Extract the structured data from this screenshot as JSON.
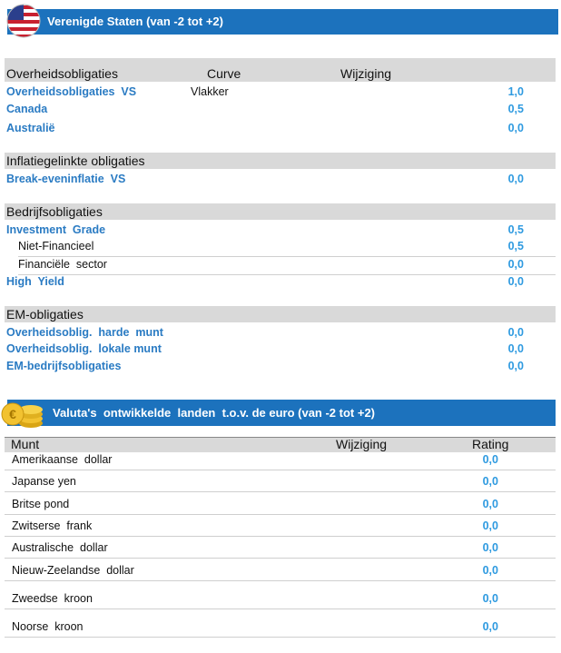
{
  "us_section": {
    "title": "Verenigde Staten (van -2 tot +2)",
    "groups": [
      {
        "header": "Overheidsobligaties",
        "columns": [
          "Curve",
          "Wijziging"
        ],
        "rows": [
          {
            "label": "Overheidsobligaties  VS",
            "curve": "Vlakker",
            "value": "1,0"
          },
          {
            "label": "Canada",
            "value": "0,5"
          },
          {
            "label": "Australië",
            "value": "0,0"
          }
        ]
      },
      {
        "header": "Inflatiegelinkte obligaties",
        "rows": [
          {
            "label": "Break-eveninflatie  VS",
            "value": "0,0"
          }
        ]
      },
      {
        "header": "Bedrijfsobligaties",
        "rows": [
          {
            "label": "Investment  Grade",
            "value": "0,5"
          },
          {
            "label": "Niet-Financieel",
            "value": "0,5",
            "sub": true
          },
          {
            "label": "Financiële  sector",
            "value": "0,0",
            "sub": true
          },
          {
            "label": "High  Yield",
            "value": "0,0"
          }
        ]
      },
      {
        "header": "EM-obligaties",
        "rows": [
          {
            "label": "Overheidsoblig.  harde  munt",
            "value": "0,0"
          },
          {
            "label": "Overheidsoblig.  lokale munt",
            "value": "0,0"
          },
          {
            "label": "EM-bedrijfsobligaties",
            "value": "0,0"
          }
        ]
      }
    ]
  },
  "fx_section": {
    "title": "Valuta's  ontwikkelde  landen  t.o.v. de euro (van -2 tot +2)",
    "table": {
      "columns": [
        "Munt",
        "Wijziging",
        "Rating"
      ],
      "rows": [
        [
          "Amerikaanse  dollar",
          "0,0"
        ],
        [
          "Japanse yen",
          "0,0"
        ],
        [
          "Britse pond",
          "0,0"
        ],
        [
          "Zwitserse  frank",
          "0,0"
        ],
        [
          "Australische  dollar",
          "0,0"
        ],
        [
          "Nieuw-Zeelandse  dollar",
          "0,0"
        ],
        [
          "Zweedse  kroon",
          "0,0"
        ],
        [
          "Noorse  kroon",
          "0,0"
        ]
      ]
    }
  }
}
